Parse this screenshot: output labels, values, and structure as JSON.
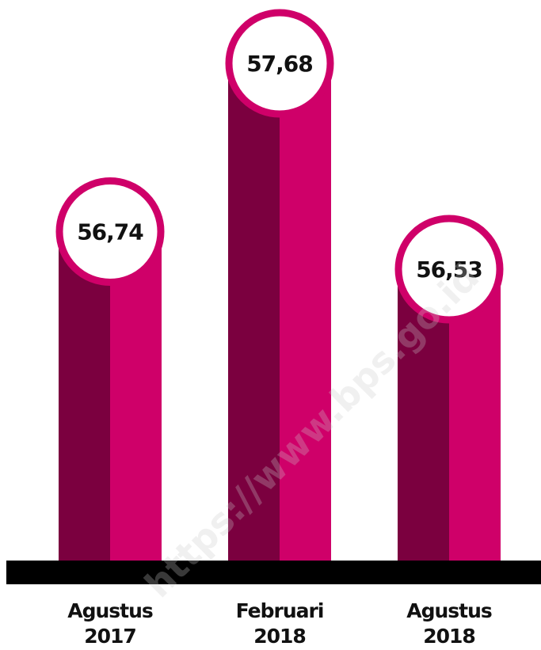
{
  "chart_data": {
    "type": "bar",
    "categories": [
      [
        "Agustus",
        "2017"
      ],
      [
        "Februari",
        "2018"
      ],
      [
        "Agustus",
        "2018"
      ]
    ],
    "values": [
      56.74,
      57.68,
      56.53
    ],
    "value_labels": [
      "56,74",
      "57,68",
      "56,53"
    ],
    "colors": {
      "bar_dark": "#7b003f",
      "bar_light": "#cf0069",
      "circle_ring": "#cf0069",
      "circle_fill": "#ffffff",
      "baseline": "#000000"
    }
  },
  "watermark": "https://www.bps.go.id"
}
